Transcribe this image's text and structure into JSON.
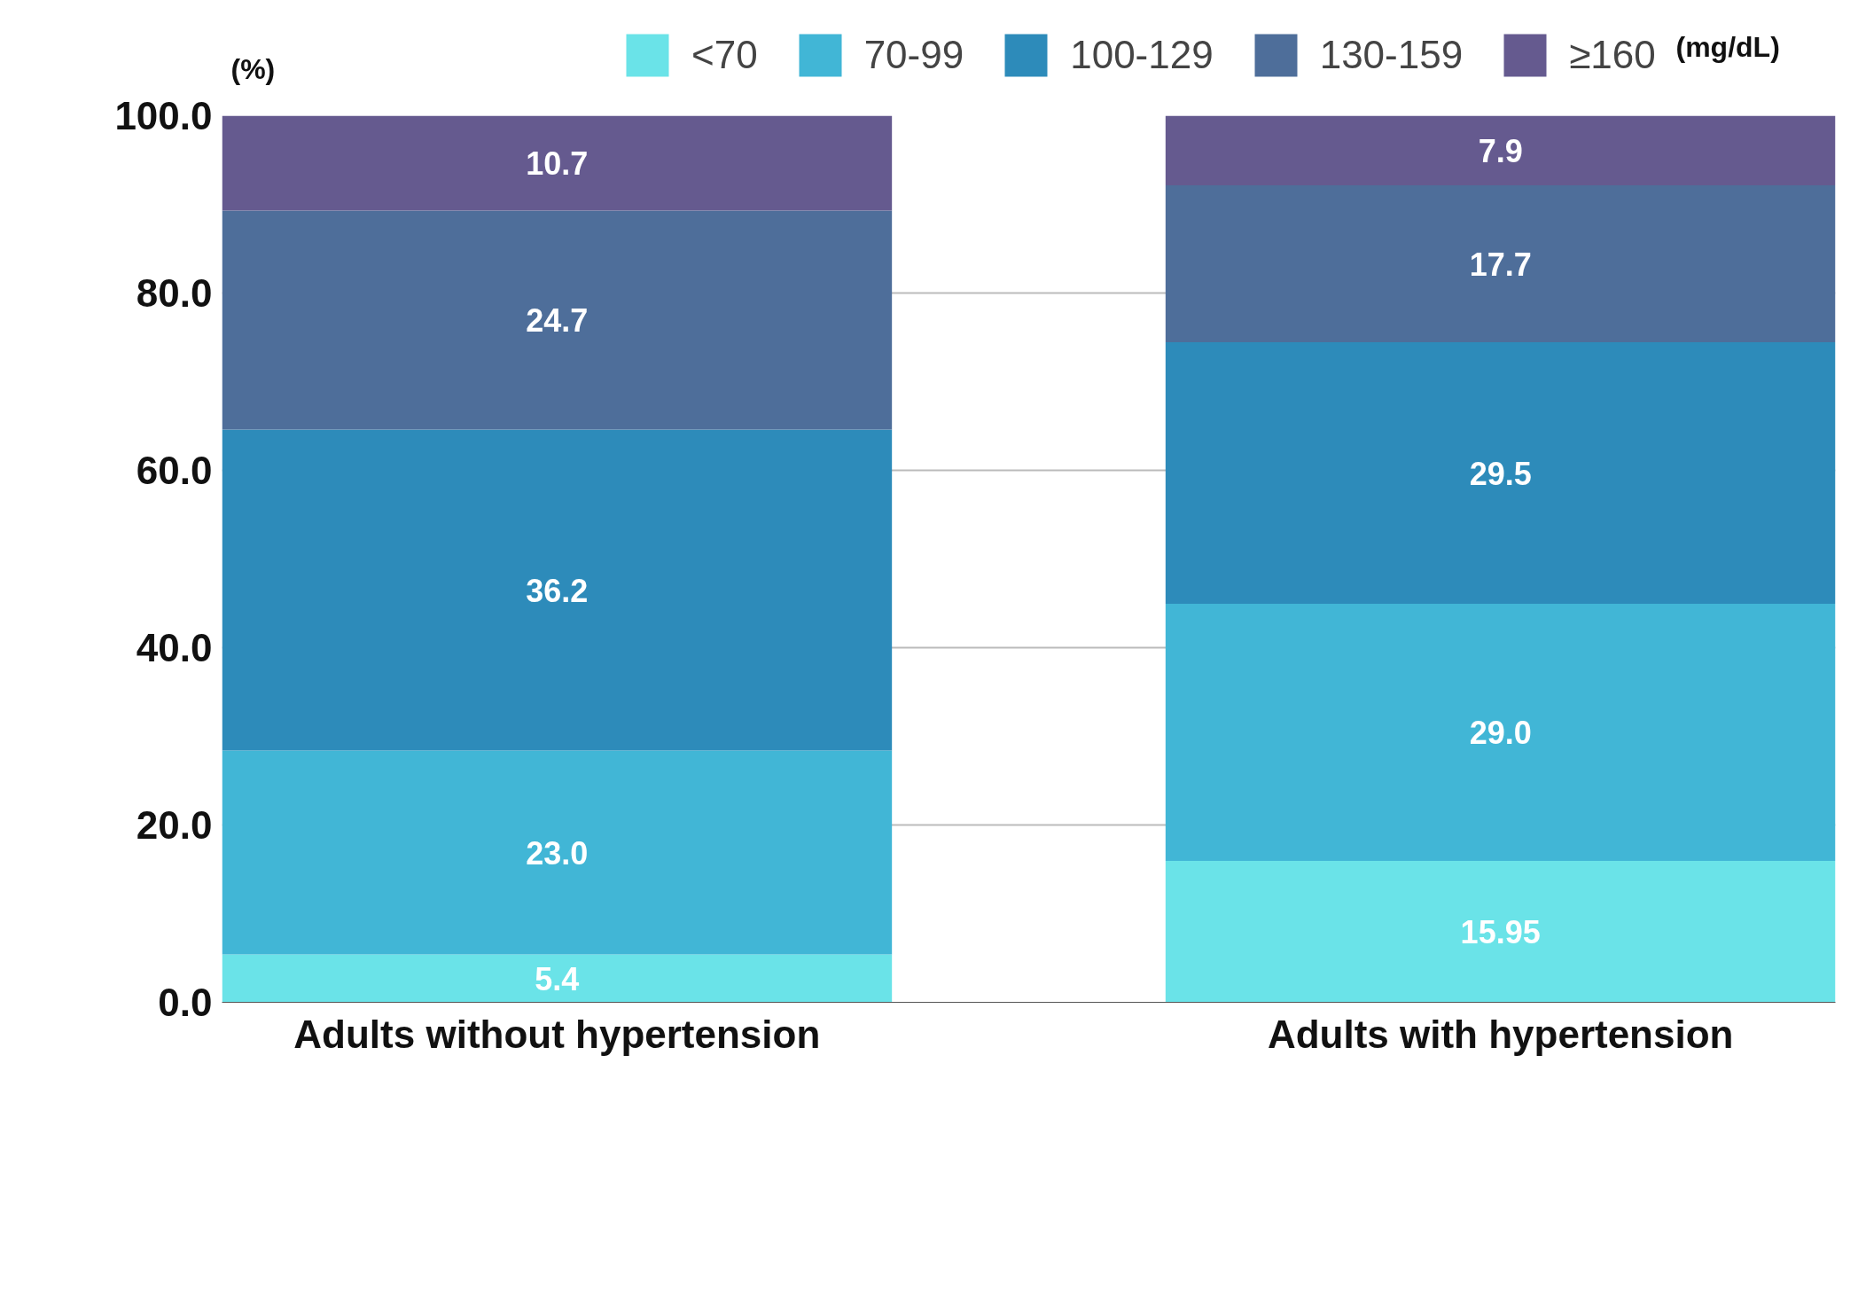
{
  "chart_data": {
    "type": "bar",
    "stacked": true,
    "categories": [
      "Adults without hypertension",
      "Adults with hypertension"
    ],
    "series": [
      {
        "name": "<70",
        "color": "#6ae3e8",
        "values": [
          5.4,
          15.95
        ],
        "value_labels": [
          "5.4",
          "15.95"
        ]
      },
      {
        "name": "70-99",
        "color": "#41b6d6",
        "values": [
          23.0,
          29.0
        ],
        "value_labels": [
          "23.0",
          "29.0"
        ]
      },
      {
        "name": "100-129",
        "color": "#2d8bba",
        "values": [
          36.2,
          29.5
        ],
        "value_labels": [
          "36.2",
          "29.5"
        ]
      },
      {
        "name": "130-159",
        "color": "#4e6e9a",
        "values": [
          24.7,
          17.7
        ],
        "value_labels": [
          "24.7",
          "17.7"
        ]
      },
      {
        "name": "≥160",
        "color": "#655a8f",
        "values": [
          10.7,
          7.9
        ],
        "value_labels": [
          "10.7",
          "7.9"
        ]
      }
    ],
    "ylim": [
      0,
      100
    ],
    "yticks": [
      {
        "value": 0,
        "label": "0.0"
      },
      {
        "value": 20,
        "label": "20.0"
      },
      {
        "value": 40,
        "label": "40.0"
      },
      {
        "value": 60,
        "label": "60.0"
      },
      {
        "value": 80,
        "label": "80.0"
      },
      {
        "value": 100,
        "label": "100.0"
      }
    ],
    "grid": "y",
    "legend": "top right",
    "annotations": [
      "(%)",
      "(mg/dL)"
    ]
  }
}
